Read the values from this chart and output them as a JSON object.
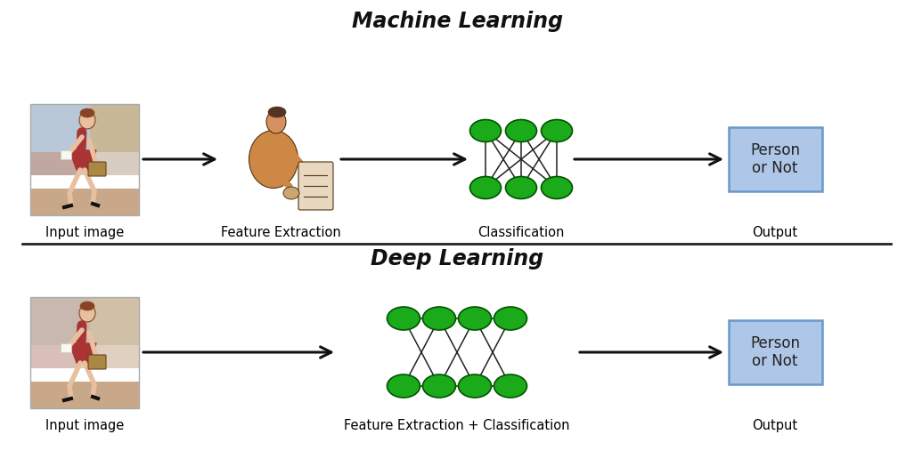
{
  "bg_color": "#ffffff",
  "title_ml": "Machine Learning",
  "title_dl": "Deep Learning",
  "title_fontsize": 17,
  "label_fontsize": 10.5,
  "node_color": "#1aaa1a",
  "node_edge_color": "#005500",
  "box_facecolor": "#aec6e8",
  "box_edgecolor": "#6699cc",
  "line_color": "#222222",
  "divider_color": "#222222",
  "arrow_color": "#111111",
  "label_ml_input": "Input image",
  "label_ml_feat": "Feature Extraction",
  "label_ml_class": "Classification",
  "label_ml_output": "Output",
  "label_dl_input": "Input image",
  "label_dl_feat": "Feature Extraction + Classification",
  "label_dl_output": "Output",
  "box_text": "Person\nor Not",
  "img_bg_colors": {
    "top_left": "#b8c4d0",
    "top_right": "#c8b8a8",
    "mid_left": "#c8b0a0",
    "mid_right": "#d8c8b8",
    "bottom": "#c0a898"
  },
  "person_color": "#aa3333",
  "skin_color": "#e8c0a0",
  "hair_color": "#884422",
  "bag_color": "#aa8844"
}
